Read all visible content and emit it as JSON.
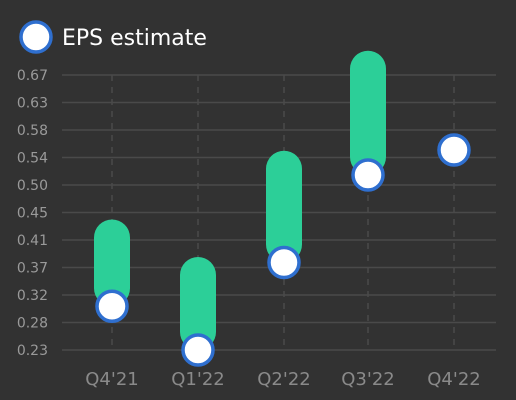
{
  "chart_data": {
    "type": "bar",
    "legend": {
      "entries": [
        "EPS estimate"
      ],
      "placement": "top-left"
    },
    "categories": [
      "Q4'21",
      "Q1'22",
      "Q2'22",
      "Q3'22",
      "Q4'22"
    ],
    "series": [
      {
        "name": "EPS estimate",
        "values": [
          0.3,
          0.23,
          0.37,
          0.51,
          0.55
        ]
      },
      {
        "name": "",
        "values": [
          0.41,
          0.35,
          0.52,
          0.68,
          null
        ]
      }
    ],
    "yticks": [
      "0.23",
      "0.28",
      "0.32",
      "0.37",
      "0.41",
      "0.45",
      "0.50",
      "0.54",
      "0.58",
      "0.63",
      "0.67"
    ],
    "ylim": [
      0.23,
      0.67
    ],
    "grid": true,
    "colors": {
      "background": "#323232",
      "range_bar": "#2ccf98",
      "marker_fill": "#ffffff",
      "marker_stroke": "#2f6fcf",
      "grid": "#4a4a4a",
      "tick_text": "#9a9a9a"
    }
  }
}
